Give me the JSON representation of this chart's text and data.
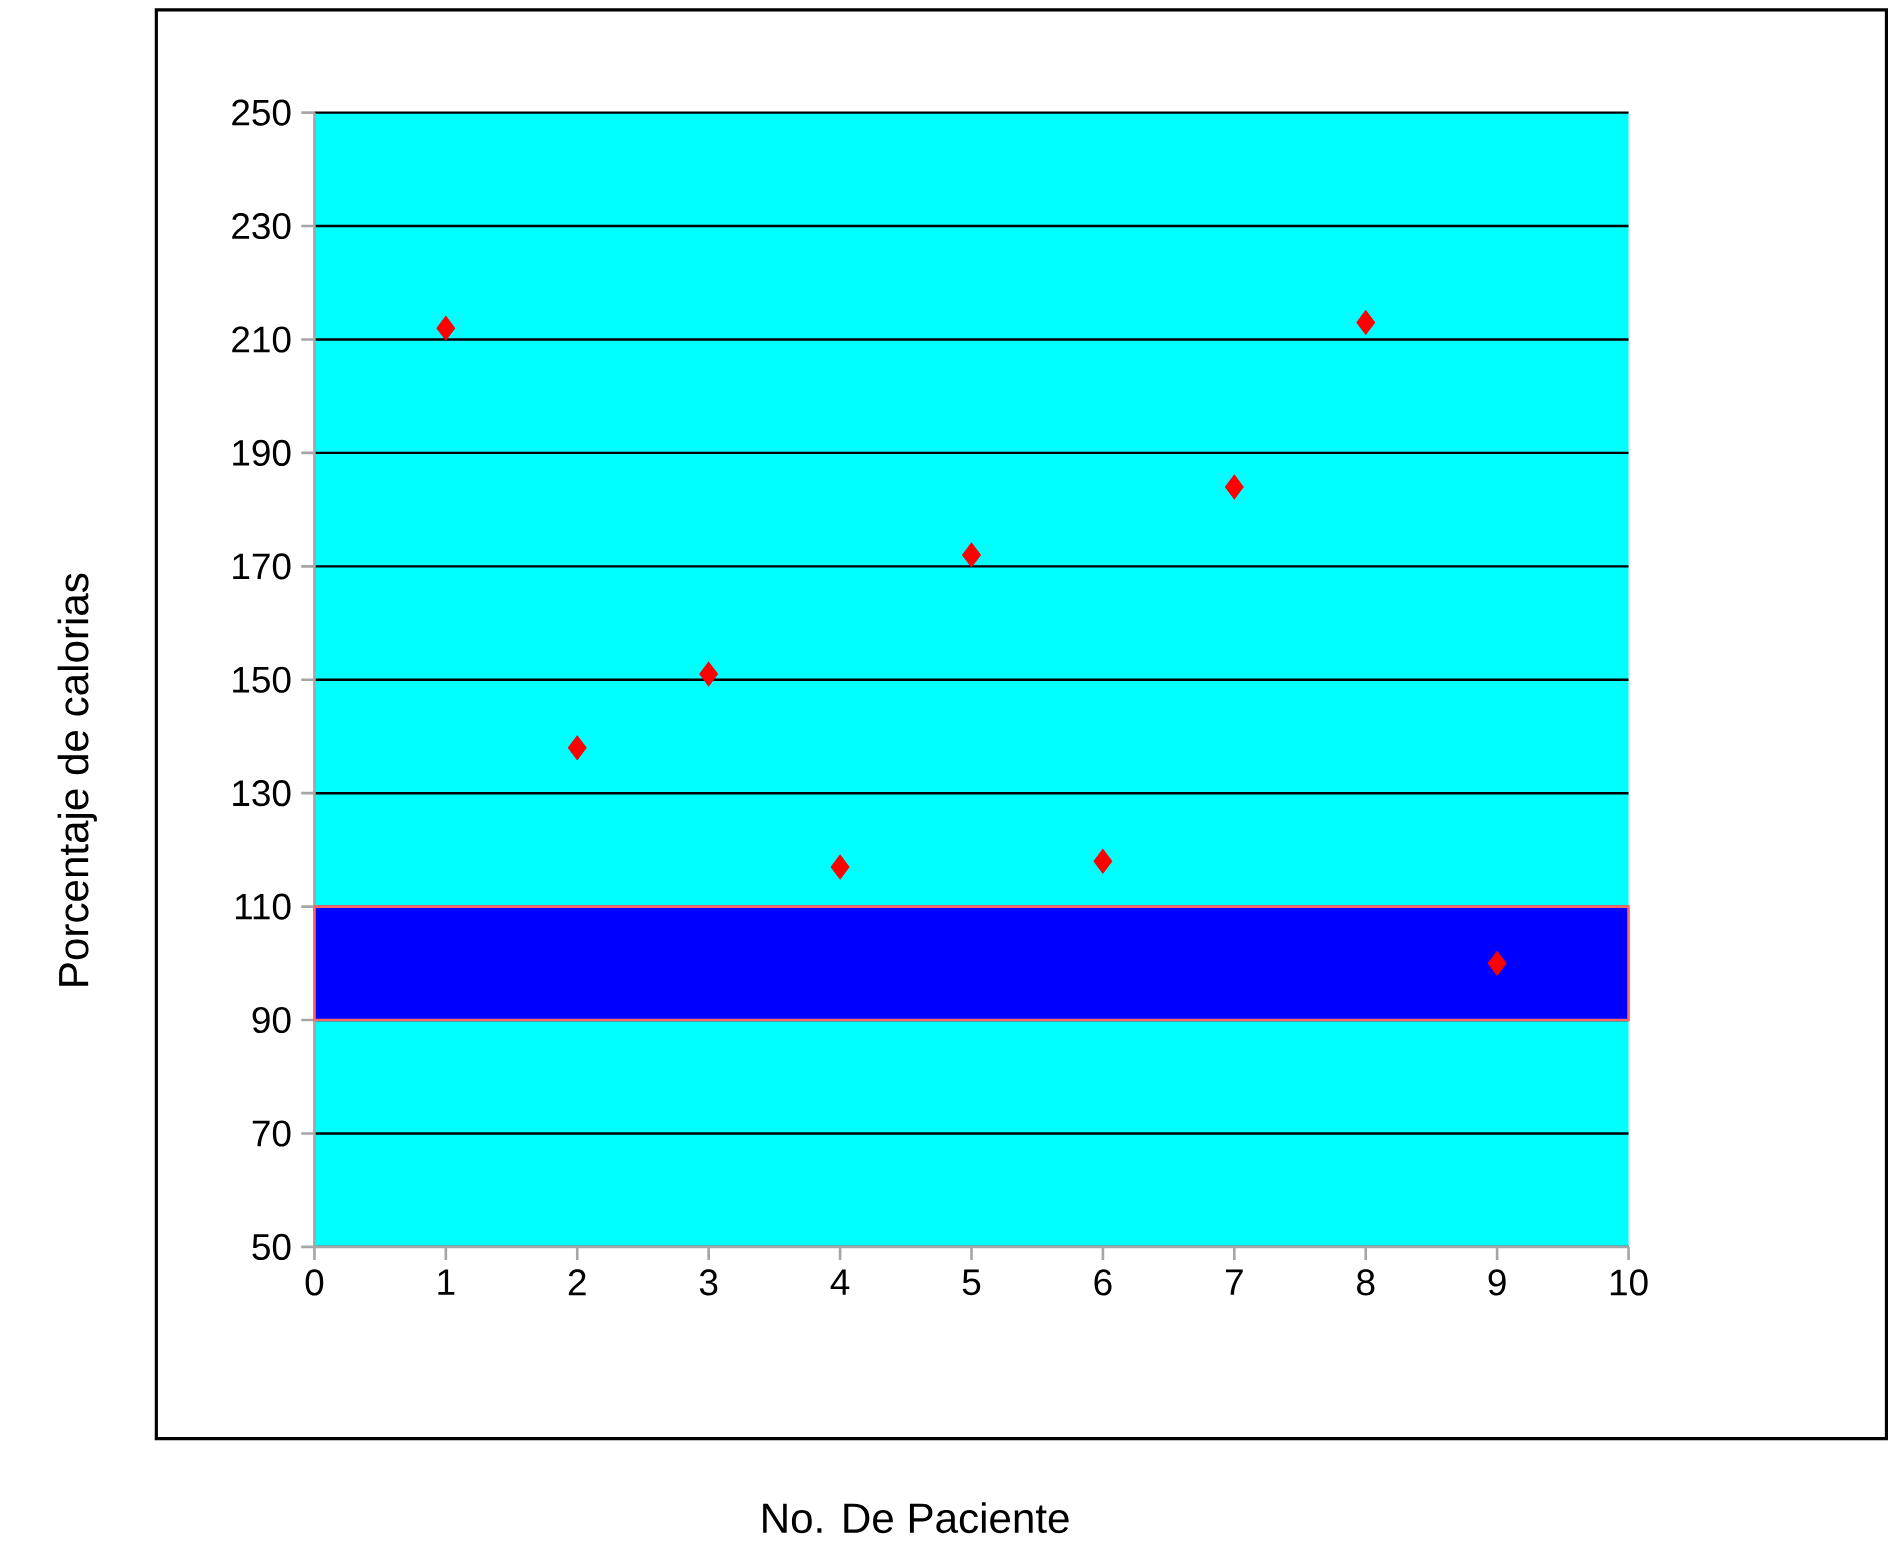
{
  "chart_data": {
    "type": "scatter",
    "xlabel": "No. De Paciente",
    "ylabel": "Porcentaje de calorias",
    "x": [
      1,
      2,
      3,
      4,
      5,
      6,
      7,
      8,
      9
    ],
    "values": [
      212,
      138,
      151,
      117,
      172,
      118,
      184,
      213,
      100
    ],
    "color": "#ff0000",
    "marker": "diamond",
    "xlim": [
      0,
      10
    ],
    "xticks": [
      0,
      1,
      2,
      3,
      4,
      5,
      6,
      7,
      8,
      9,
      10
    ],
    "ylim": [
      50,
      250
    ],
    "yticks": [
      50,
      70,
      90,
      110,
      130,
      150,
      170,
      190,
      210,
      230,
      250
    ],
    "grid": "y",
    "bands": [
      {
        "axis": "y",
        "from": 90,
        "to": 110,
        "color": "#0000ff"
      }
    ]
  }
}
